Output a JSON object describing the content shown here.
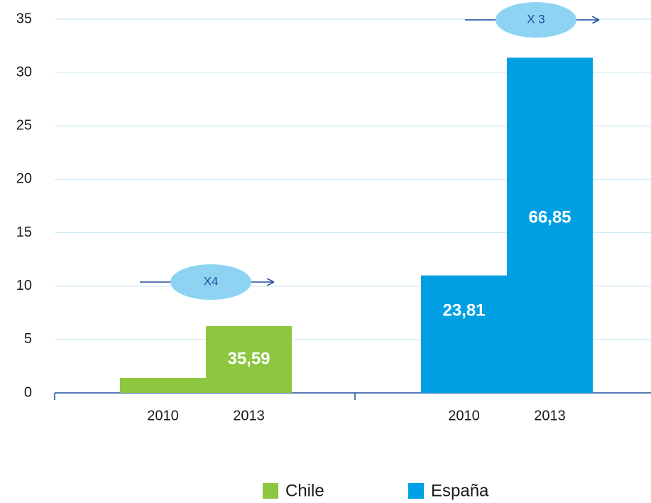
{
  "chart_data": {
    "type": "bar",
    "categories": [
      "2010",
      "2013",
      "2010",
      "2013"
    ],
    "series": [
      {
        "name": "Chile",
        "color": "#8dc63f",
        "values": [
          1.4,
          6.25,
          null,
          null
        ],
        "bar_texts": [
          null,
          "35,59",
          null,
          null
        ]
      },
      {
        "name": "España",
        "color": "#009fe3",
        "values": [
          null,
          null,
          11.0,
          31.4
        ],
        "bar_texts": [
          null,
          null,
          "23,81",
          "66,85"
        ]
      }
    ],
    "annotations": [
      "X4",
      "X 3"
    ],
    "ylim": [
      0,
      35
    ],
    "yticks": [
      0,
      5,
      10,
      15,
      20,
      25,
      30,
      35
    ],
    "grid": true,
    "legend": "bottom"
  }
}
